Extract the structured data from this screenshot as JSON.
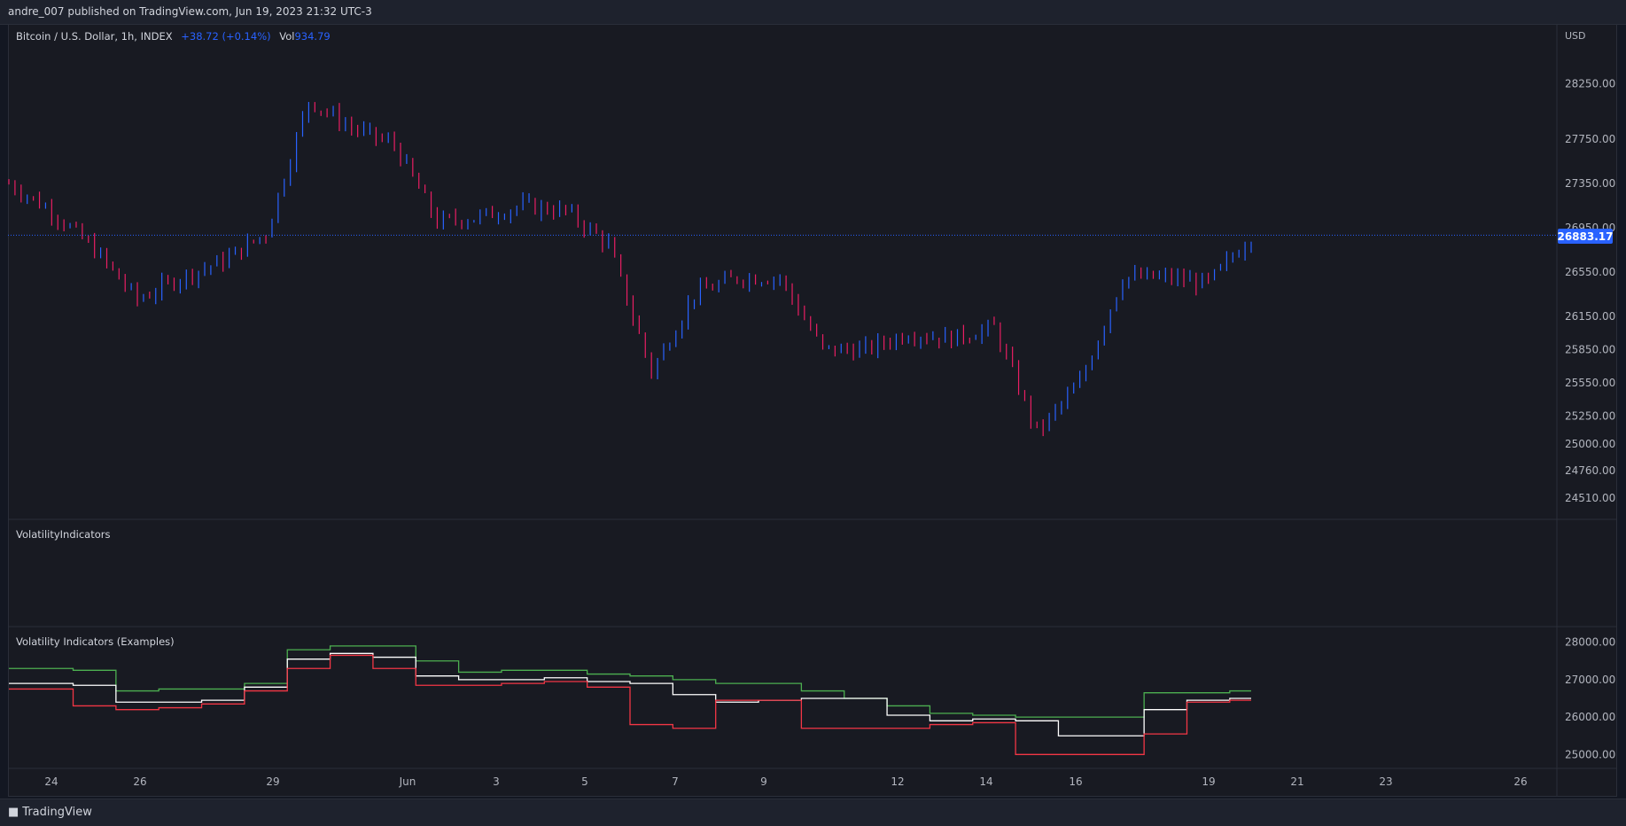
{
  "header": {
    "published_text": "andre_007 published on TradingView.com, Jun 19, 2023 21:32 UTC-3"
  },
  "legend": {
    "symbol": "Bitcoin / U.S. Dollar, 1h, INDEX",
    "change": "+38.72 (+0.14%)",
    "vol_label": "Vol",
    "vol_value": "934.79"
  },
  "price_axis": {
    "currency": "USD",
    "current_price": "26883.17"
  },
  "pane2": {
    "title": "VolatilityIndicators"
  },
  "pane3": {
    "title": "Volatility Indicators (Examples)"
  },
  "footer": {
    "brand": "TradingView"
  },
  "colors": {
    "background": "#131722",
    "panel": "#181a22",
    "bar_up": "#2962ff",
    "bar_down": "#e91e63",
    "last_price_line": "#2962ff",
    "upper_band": "#4caf50",
    "middle_line": "#ffffff",
    "lower_band": "#f23645"
  },
  "chart_data": [
    {
      "type": "candlestick",
      "title": "Bitcoin / U.S. Dollar, 1h, INDEX",
      "ylabel": "USD",
      "ylim": [
        24350,
        28750
      ],
      "yticks": [
        "28250.00",
        "27750.00",
        "27350.00",
        "26950.00",
        "26550.00",
        "26150.00",
        "25850.00",
        "25550.00",
        "25250.00",
        "25000.00",
        "24760.00",
        "24510.00"
      ],
      "x_ticks": [
        "24",
        "26",
        "29",
        "Jun",
        "3",
        "5",
        "7",
        "9",
        "12",
        "14",
        "16",
        "19",
        "21",
        "23",
        "26"
      ],
      "last_price": 26883.17,
      "series": [
        {
          "name": "Bitcoin / U.S. Dollar",
          "points": [
            [
              "May 22",
              27350
            ],
            [
              "May 23",
              27100
            ],
            [
              "May 24",
              26750
            ],
            [
              "May 25",
              26300
            ],
            [
              "May 26",
              26500
            ],
            [
              "May 27",
              26650
            ],
            [
              "May 28",
              26900
            ],
            [
              "May 29",
              28100
            ],
            [
              "May 30",
              27850
            ],
            [
              "May 31",
              27700
            ],
            [
              "Jun 1",
              27000
            ],
            [
              "Jun 2",
              27050
            ],
            [
              "Jun 3",
              27150
            ],
            [
              "Jun 4",
              27100
            ],
            [
              "Jun 5",
              26800
            ],
            [
              "Jun 6",
              25650
            ],
            [
              "Jun 7",
              26350
            ],
            [
              "Jun 8",
              26500
            ],
            [
              "Jun 9",
              26500
            ],
            [
              "Jun 10",
              25850
            ],
            [
              "Jun 11",
              25850
            ],
            [
              "Jun 12",
              26000
            ],
            [
              "Jun 13",
              25950
            ],
            [
              "Jun 14",
              26050
            ],
            [
              "Jun 15",
              25100
            ],
            [
              "Jun 16",
              25550
            ],
            [
              "Jun 17",
              26500
            ],
            [
              "Jun 18",
              26500
            ],
            [
              "Jun 19",
              26450
            ],
            [
              "Jun 20",
              26880
            ]
          ]
        }
      ]
    },
    {
      "type": "line",
      "title": "Volatility Indicators (Examples)",
      "ylim": [
        24700,
        28300
      ],
      "yticks": [
        "28000.00",
        "27000.00",
        "26000.00",
        "25000.00"
      ],
      "series": [
        {
          "values": [
            27300,
            27300,
            27250,
            26700,
            26750,
            26750,
            26900,
            27800,
            27900,
            27900,
            27500,
            27200,
            27250,
            27250,
            27150,
            27100,
            27000,
            26900,
            26900,
            26700,
            26500,
            26300,
            26100,
            26050,
            26000,
            26000,
            26000,
            26650,
            26650,
            26700
          ]
        },
        {
          "values": [
            26900,
            26900,
            26850,
            26400,
            26400,
            26450,
            26800,
            27550,
            27700,
            27600,
            27100,
            27000,
            27000,
            27050,
            26950,
            26900,
            26600,
            26400,
            26450,
            26500,
            26500,
            26050,
            25900,
            25950,
            25900,
            25500,
            25500,
            26200,
            26450,
            26500
          ]
        },
        {
          "values": [
            26750,
            26750,
            26300,
            26200,
            26250,
            26350,
            26700,
            27300,
            27650,
            27300,
            26850,
            26850,
            26900,
            26950,
            26800,
            25800,
            25700,
            26450,
            26450,
            25700,
            25700,
            25700,
            25800,
            25850,
            25000,
            25000,
            25000,
            25550,
            26400,
            26450
          ]
        }
      ]
    }
  ]
}
